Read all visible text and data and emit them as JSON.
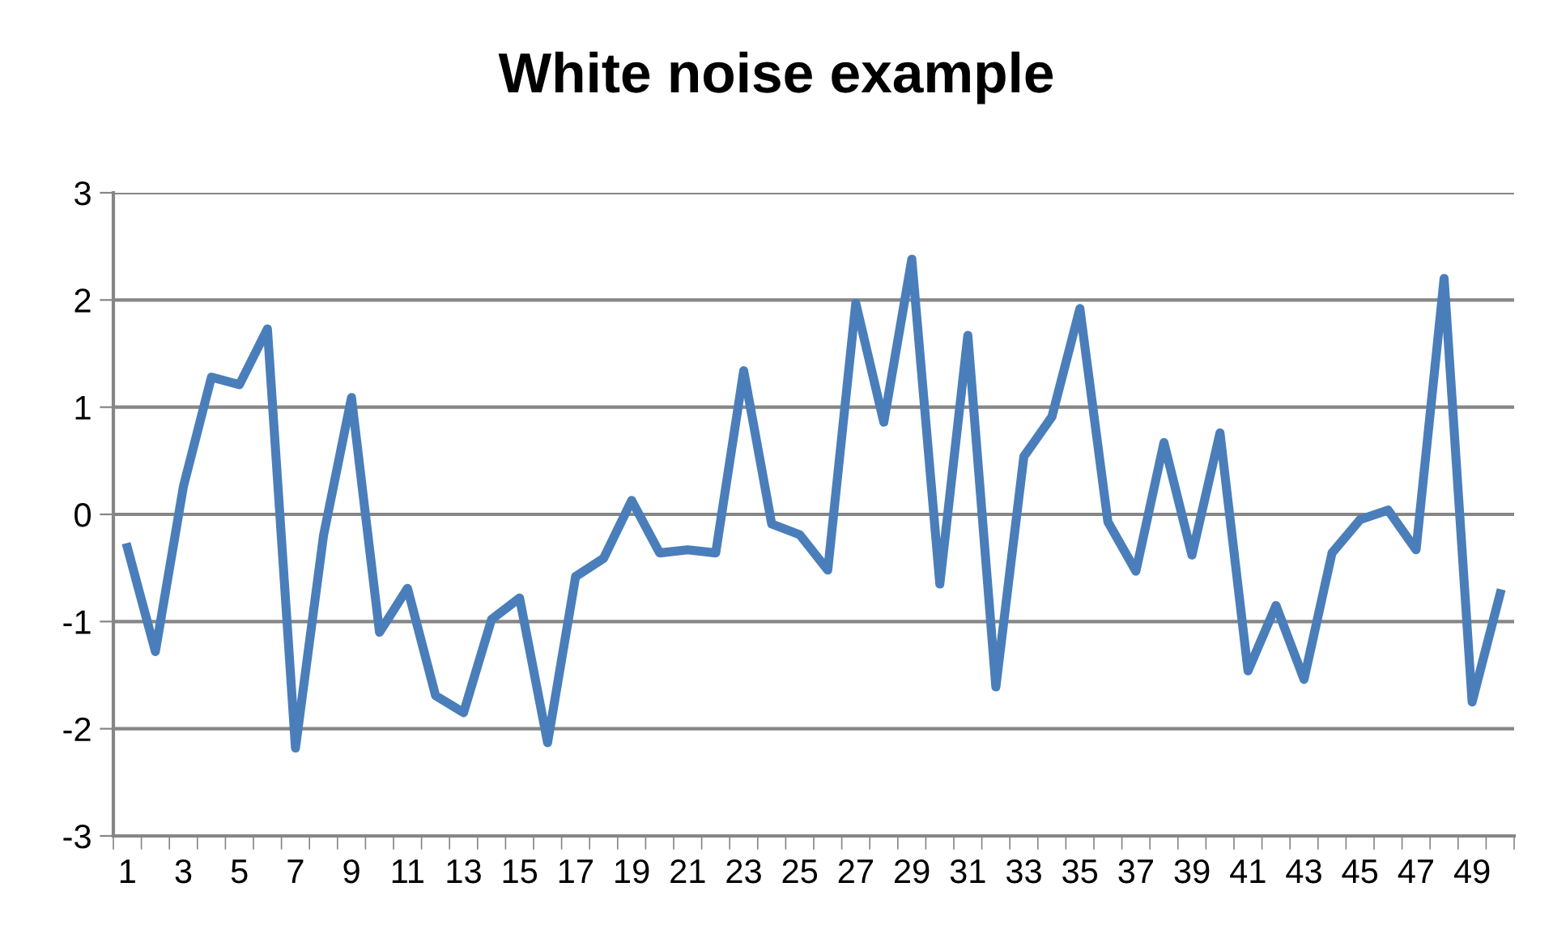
{
  "chart_data": {
    "type": "line",
    "title": "White noise example",
    "categories": [
      "1",
      null,
      "3",
      null,
      "5",
      null,
      "7",
      null,
      "9",
      null,
      "11",
      null,
      "13",
      null,
      "15",
      null,
      "17",
      null,
      "19",
      null,
      "21",
      null,
      "23",
      null,
      "25",
      null,
      "27",
      null,
      "29",
      null,
      "31",
      null,
      "33",
      null,
      "35",
      null,
      "37",
      null,
      "39",
      null,
      "41",
      null,
      "43",
      null,
      "45",
      null,
      "47",
      null,
      "49",
      null
    ],
    "series": [
      {
        "color": "#4a7ebb",
        "values": [
          -0.31,
          -1.28,
          0.26,
          1.28,
          1.21,
          1.73,
          -2.18,
          -0.2,
          1.09,
          -1.1,
          -0.69,
          -1.69,
          -1.85,
          -0.98,
          -0.78,
          -2.13,
          -0.58,
          -0.41,
          0.13,
          -0.36,
          -0.33,
          -0.36,
          1.34,
          -0.09,
          -0.19,
          -0.52,
          1.97,
          0.86,
          2.38,
          -0.65,
          1.67,
          -1.61,
          0.54,
          0.91,
          1.92,
          -0.07,
          -0.53,
          0.67,
          -0.38,
          0.76,
          -1.46,
          -0.85,
          -1.54,
          -0.36,
          -0.05,
          0.04,
          -0.33,
          2.2,
          -1.75,
          -0.74
        ]
      }
    ],
    "ylim": [
      -3,
      3
    ],
    "yticks": [
      -3,
      -2,
      -1,
      0,
      1,
      2,
      3
    ],
    "grid": "y",
    "marker": "none",
    "line_style": "solid"
  }
}
